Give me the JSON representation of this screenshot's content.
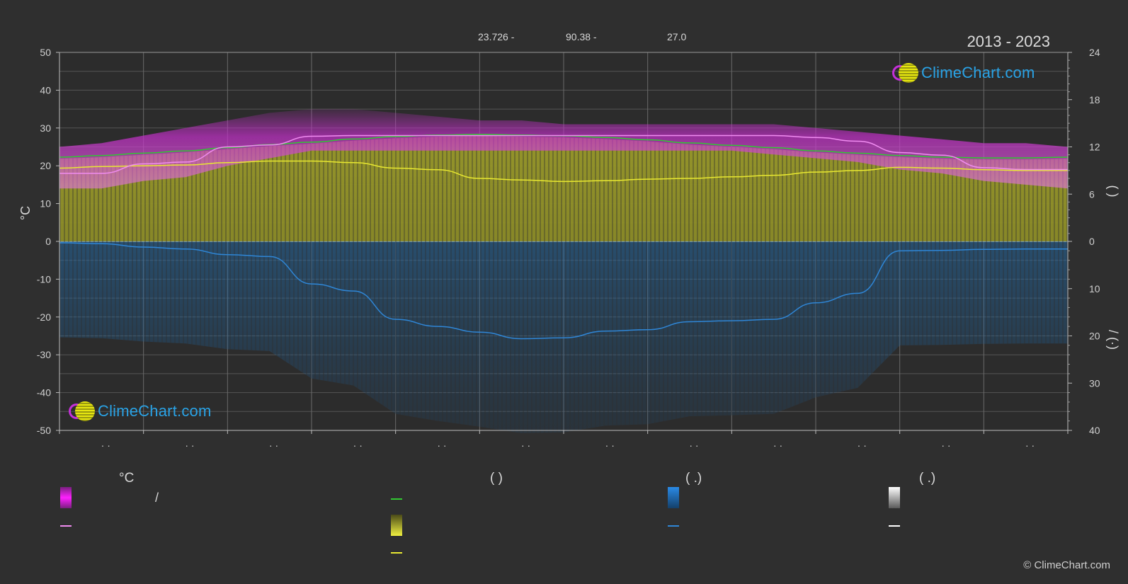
{
  "header": {
    "range_items": [
      "23.726 -",
      "90.38 -",
      "27.0"
    ],
    "years": "2013 - 2023"
  },
  "logo_text": "ClimeChart.com",
  "copyright": "© ClimeChart.com",
  "colors": {
    "background": "#2f2f2f",
    "temp_band": "#c230c8",
    "daylight": "#32c832",
    "sunshine": "#e8e832",
    "precip": "#2f86d6",
    "mean_temp": "#f08cf0",
    "snow": "#ffffff"
  },
  "chart_data": {
    "type": "area",
    "left_axis": {
      "label": "°C",
      "ylim": [
        -50,
        50
      ],
      "ticks": [
        "50",
        "40",
        "30",
        "20",
        "10",
        "0",
        "-10",
        "-20",
        "-30",
        "-40",
        "-50"
      ]
    },
    "right_axis_top": {
      "ticks": [
        "24",
        "18",
        "12",
        "6",
        "0"
      ],
      "label": "(  )"
    },
    "right_axis_bottom": {
      "ticks": [
        "0",
        "10",
        "20",
        "30",
        "40"
      ],
      "label": "/  (·)"
    },
    "x_tick_labels": [
      "· ·",
      "· ·",
      "· ·",
      "· ·",
      "· ·",
      "· ·",
      "· ·",
      "· ·",
      "· ·",
      "· ·",
      "· ·",
      "· ·"
    ],
    "grid": true,
    "x": [
      0,
      0.5,
      1,
      1.5,
      2,
      2.5,
      3,
      3.5,
      4,
      4.5,
      5,
      5.5,
      6,
      6.5,
      7,
      7.5,
      8,
      8.5,
      9,
      9.5,
      10,
      10.5,
      11,
      11.5,
      12
    ],
    "series": [
      {
        "key": "daylight_hours",
        "axis": "right_top",
        "values": [
          10.7,
          10.9,
          11.2,
          11.5,
          11.9,
          12.3,
          12.6,
          13.0,
          13.3,
          13.5,
          13.6,
          13.5,
          13.4,
          13.2,
          12.9,
          12.5,
          12.2,
          11.9,
          11.5,
          11.2,
          10.9,
          10.7,
          10.6,
          10.6,
          10.7
        ]
      },
      {
        "key": "sunshine_hours",
        "axis": "right_top",
        "values": [
          9.3,
          9.5,
          9.6,
          9.7,
          10.0,
          10.2,
          10.2,
          10.0,
          9.3,
          9.1,
          8.0,
          7.8,
          7.6,
          7.7,
          7.9,
          8.0,
          8.2,
          8.4,
          8.8,
          9.0,
          9.4,
          9.3,
          9.1,
          9.0,
          9.0
        ]
      },
      {
        "key": "mean_daily_temp",
        "axis": "left",
        "values": [
          18.0,
          18.0,
          20.5,
          21.0,
          25.0,
          25.5,
          27.8,
          28.0,
          28.0,
          28.0,
          28.0,
          28.0,
          28.0,
          28.0,
          28.0,
          28.0,
          28.0,
          28.0,
          27.5,
          26.5,
          23.5,
          22.8,
          19.5,
          19.0,
          19.0
        ]
      },
      {
        "key": "max_temp_band",
        "axis": "left",
        "values": [
          25,
          26,
          28,
          30,
          32,
          34,
          35,
          35,
          34,
          33,
          32,
          32,
          31,
          31,
          31,
          31,
          31,
          31,
          30,
          29,
          28,
          27,
          26,
          26,
          25
        ]
      },
      {
        "key": "min_temp_band",
        "axis": "left",
        "values": [
          14,
          14,
          16,
          17,
          20,
          22,
          24,
          24,
          24,
          24,
          24,
          24,
          24,
          24,
          24,
          24,
          24,
          23,
          22,
          21,
          19,
          18,
          16,
          15,
          14
        ]
      },
      {
        "key": "precipitation_mm",
        "axis": "right_bottom",
        "values": [
          0.3,
          0.5,
          1.2,
          1.6,
          2.8,
          3.2,
          9.0,
          10.5,
          16.5,
          18.0,
          19.2,
          20.6,
          20.4,
          19.0,
          18.7,
          17.0,
          16.8,
          16.5,
          13.0,
          11.0,
          2.0,
          1.9,
          1.7,
          1.6,
          1.6
        ]
      }
    ]
  },
  "legend": {
    "col1_head": "°C",
    "col1_sep": "/",
    "col2_head": "(        )",
    "col3_head": "(   .)",
    "col4_head": "(   .)"
  }
}
